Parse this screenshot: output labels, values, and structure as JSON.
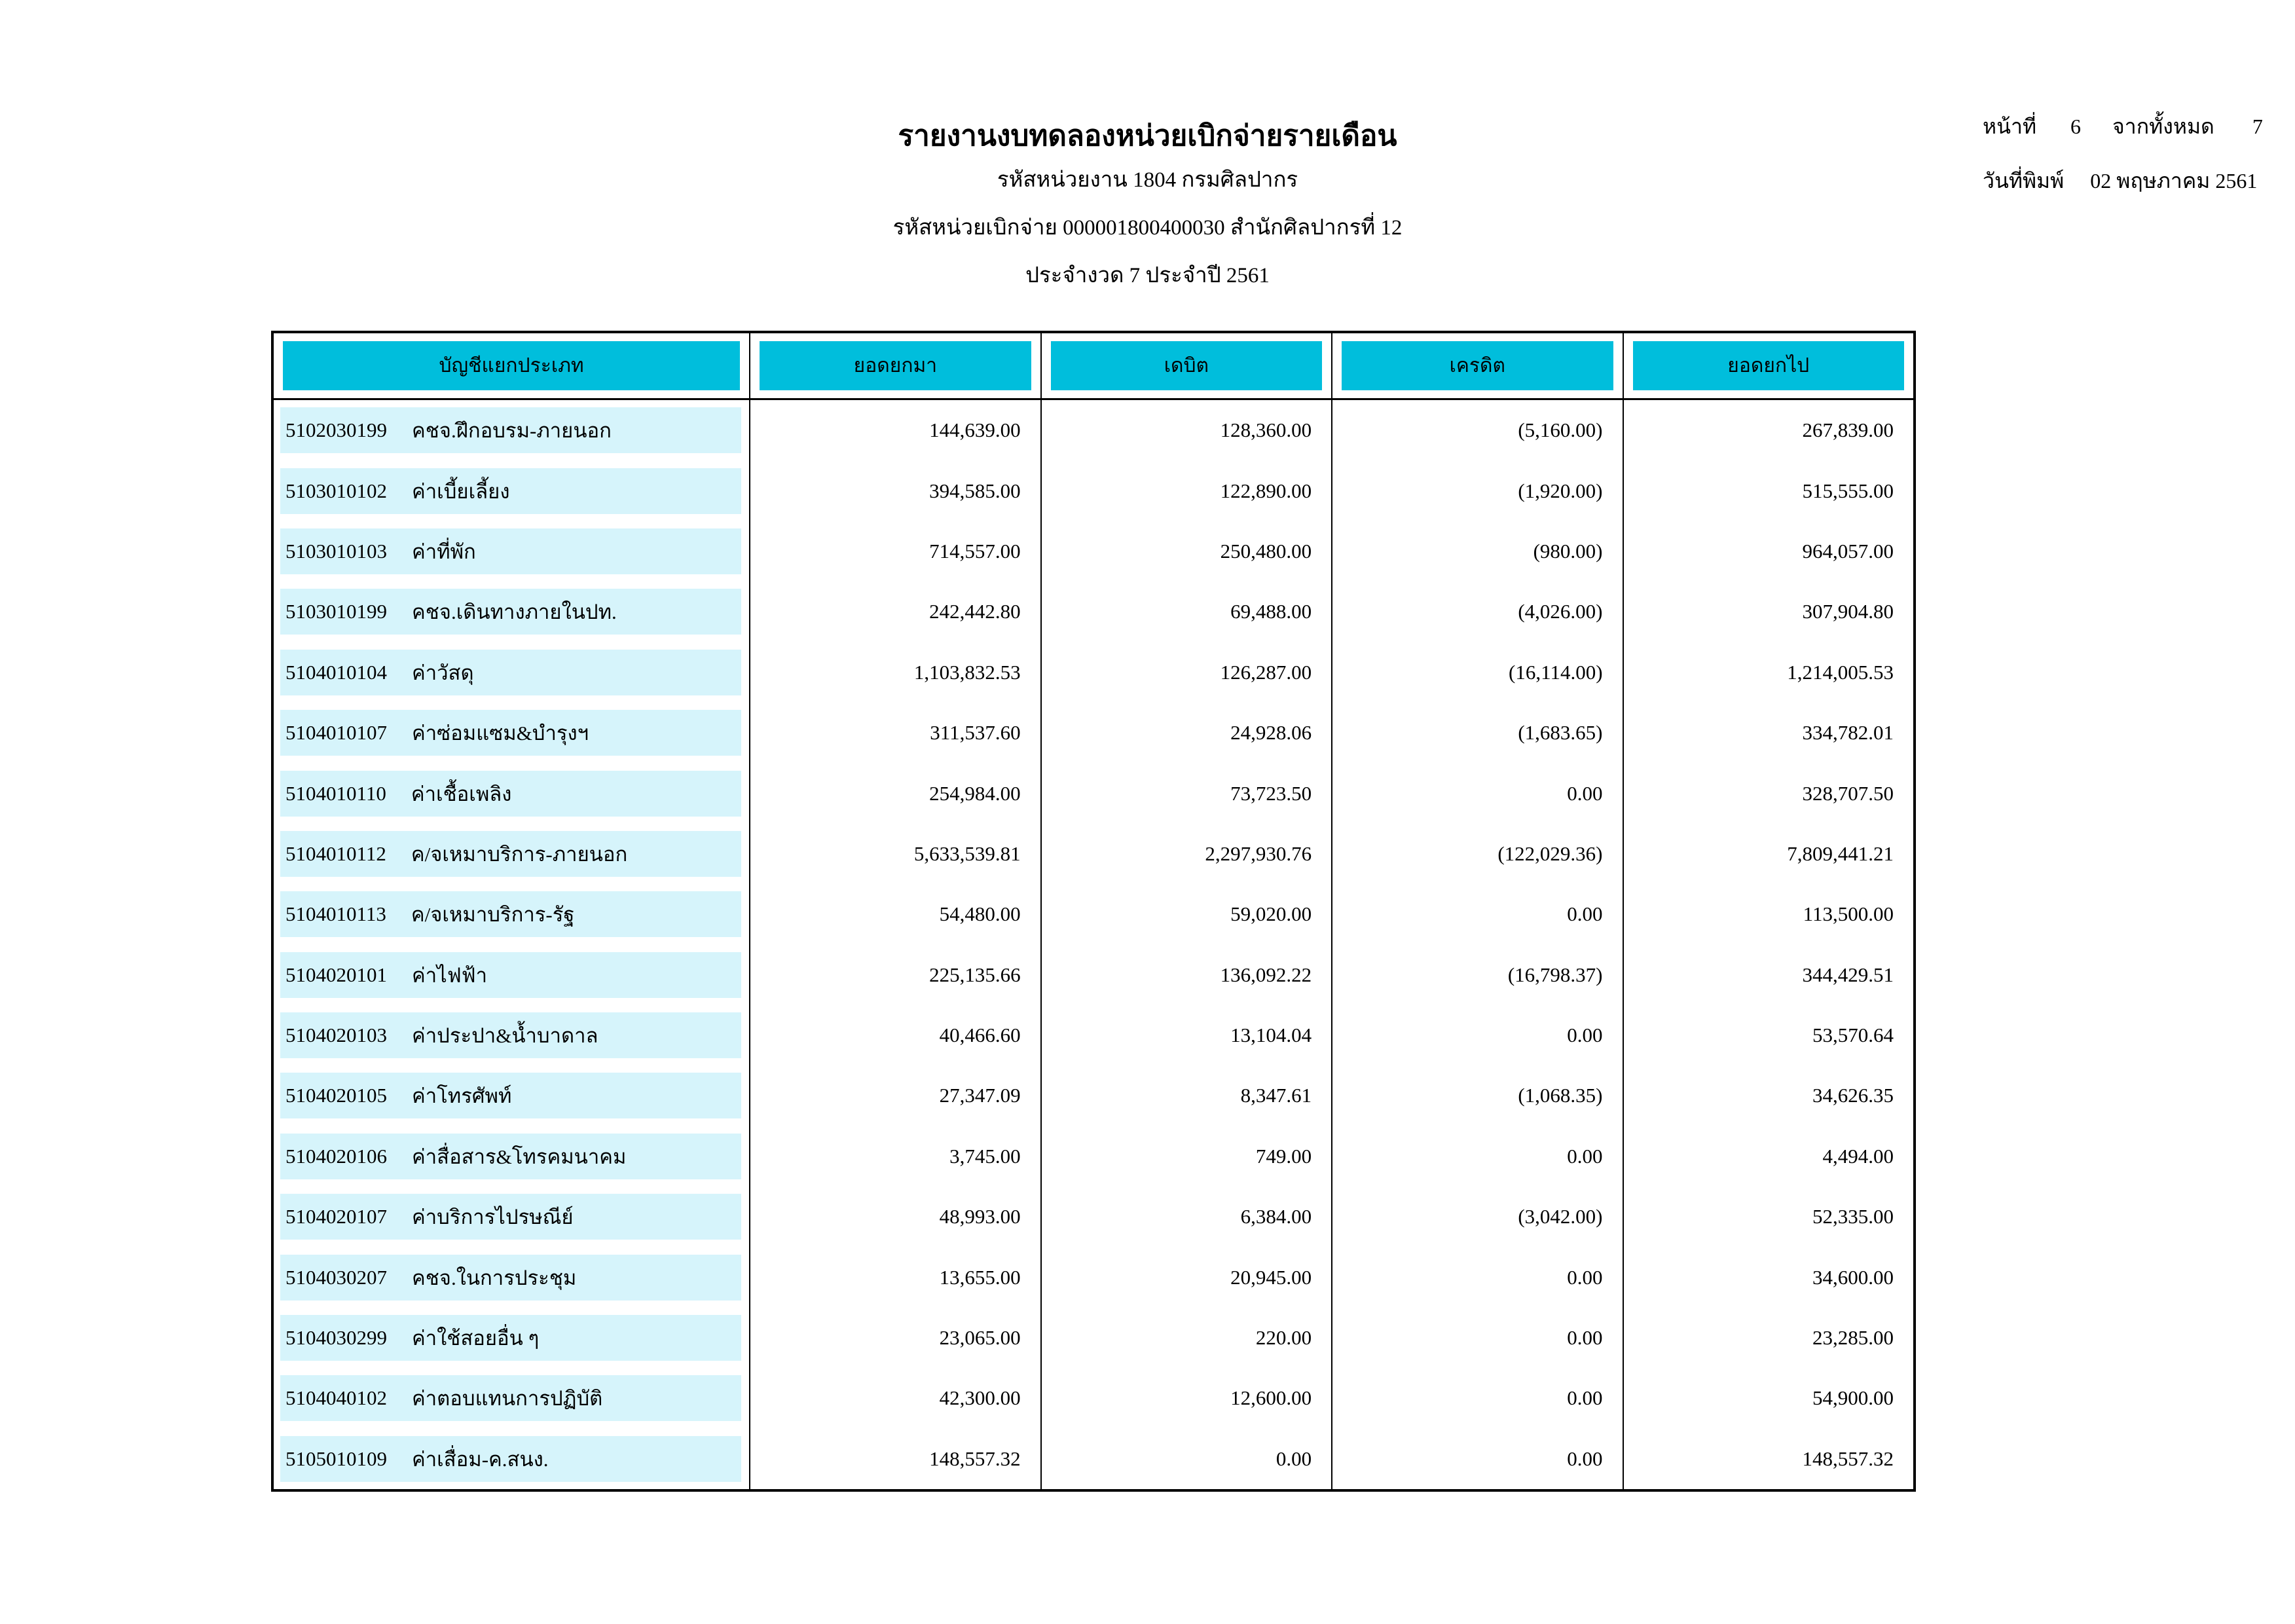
{
  "header": {
    "title": "รายงานงบทดลองหน่วยเบิกจ่ายรายเดือน",
    "agency_line": "รหัสหน่วยงาน 1804 กรมศิลปากร",
    "unit_line": "รหัสหน่วยเบิกจ่าย 000001800400030 สำนักศิลปากรที่ 12",
    "period_line": "ประจำงวด 7 ประจำปี 2561"
  },
  "page_info": {
    "page_label": "หน้าที่",
    "page_number": "6",
    "total_label": "จากทั้งหมด",
    "total_pages": "7",
    "print_date_label": "วันที่พิมพ์",
    "print_date": "02 พฤษภาคม 2561"
  },
  "colors": {
    "header_bg": "#00BEDC",
    "row_band_bg": "#D6F4FB"
  },
  "table": {
    "columns": [
      "บัญชีแยกประเภท",
      "ยอดยกมา",
      "เดบิต",
      "เครดิต",
      "ยอดยกไป"
    ],
    "rows": [
      {
        "code": "5102030199",
        "name": "คชจ.ฝึกอบรม-ภายนอก",
        "brought_forward": "144,639.00",
        "debit": "128,360.00",
        "credit": "(5,160.00)",
        "carried_forward": "267,839.00"
      },
      {
        "code": "5103010102",
        "name": "ค่าเบี้ยเลี้ยง",
        "brought_forward": "394,585.00",
        "debit": "122,890.00",
        "credit": "(1,920.00)",
        "carried_forward": "515,555.00"
      },
      {
        "code": "5103010103",
        "name": "ค่าที่พัก",
        "brought_forward": "714,557.00",
        "debit": "250,480.00",
        "credit": "(980.00)",
        "carried_forward": "964,057.00"
      },
      {
        "code": "5103010199",
        "name": "คชจ.เดินทางภายในปท.",
        "brought_forward": "242,442.80",
        "debit": "69,488.00",
        "credit": "(4,026.00)",
        "carried_forward": "307,904.80"
      },
      {
        "code": "5104010104",
        "name": "ค่าวัสดุ",
        "brought_forward": "1,103,832.53",
        "debit": "126,287.00",
        "credit": "(16,114.00)",
        "carried_forward": "1,214,005.53"
      },
      {
        "code": "5104010107",
        "name": "ค่าซ่อมแซม&บำรุงฯ",
        "brought_forward": "311,537.60",
        "debit": "24,928.06",
        "credit": "(1,683.65)",
        "carried_forward": "334,782.01"
      },
      {
        "code": "5104010110",
        "name": "ค่าเชื้อเพลิง",
        "brought_forward": "254,984.00",
        "debit": "73,723.50",
        "credit": "0.00",
        "carried_forward": "328,707.50"
      },
      {
        "code": "5104010112",
        "name": "ค/จเหมาบริการ-ภายนอก",
        "brought_forward": "5,633,539.81",
        "debit": "2,297,930.76",
        "credit": "(122,029.36)",
        "carried_forward": "7,809,441.21"
      },
      {
        "code": "5104010113",
        "name": "ค/จเหมาบริการ-รัฐ",
        "brought_forward": "54,480.00",
        "debit": "59,020.00",
        "credit": "0.00",
        "carried_forward": "113,500.00"
      },
      {
        "code": "5104020101",
        "name": "ค่าไฟฟ้า",
        "brought_forward": "225,135.66",
        "debit": "136,092.22",
        "credit": "(16,798.37)",
        "carried_forward": "344,429.51"
      },
      {
        "code": "5104020103",
        "name": "ค่าประปา&น้ำบาดาล",
        "brought_forward": "40,466.60",
        "debit": "13,104.04",
        "credit": "0.00",
        "carried_forward": "53,570.64"
      },
      {
        "code": "5104020105",
        "name": "ค่าโทรศัพท์",
        "brought_forward": "27,347.09",
        "debit": "8,347.61",
        "credit": "(1,068.35)",
        "carried_forward": "34,626.35"
      },
      {
        "code": "5104020106",
        "name": "ค่าสื่อสาร&โทรคมนาคม",
        "brought_forward": "3,745.00",
        "debit": "749.00",
        "credit": "0.00",
        "carried_forward": "4,494.00"
      },
      {
        "code": "5104020107",
        "name": "ค่าบริการไปรษณีย์",
        "brought_forward": "48,993.00",
        "debit": "6,384.00",
        "credit": "(3,042.00)",
        "carried_forward": "52,335.00"
      },
      {
        "code": "5104030207",
        "name": "คชจ.ในการประชุม",
        "brought_forward": "13,655.00",
        "debit": "20,945.00",
        "credit": "0.00",
        "carried_forward": "34,600.00"
      },
      {
        "code": "5104030299",
        "name": "ค่าใช้สอยอื่น ๆ",
        "brought_forward": "23,065.00",
        "debit": "220.00",
        "credit": "0.00",
        "carried_forward": "23,285.00"
      },
      {
        "code": "5104040102",
        "name": "ค่าตอบแทนการปฏิบัติ",
        "brought_forward": "42,300.00",
        "debit": "12,600.00",
        "credit": "0.00",
        "carried_forward": "54,900.00"
      },
      {
        "code": "5105010109",
        "name": "ค่าเสื่อม-ค.สนง.",
        "brought_forward": "148,557.32",
        "debit": "0.00",
        "credit": "0.00",
        "carried_forward": "148,557.32"
      }
    ]
  }
}
